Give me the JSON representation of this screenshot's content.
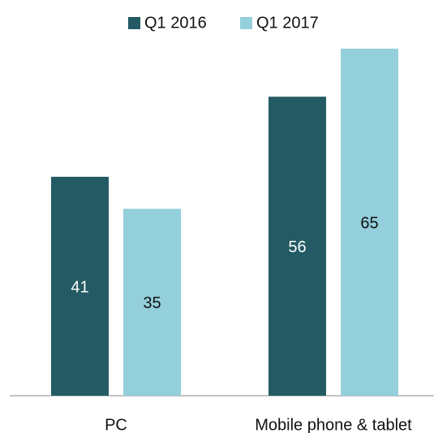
{
  "chart_data": {
    "type": "bar",
    "categories": [
      "PC",
      "Mobile phone & tablet"
    ],
    "series": [
      {
        "name": "Q1 2016",
        "color": "#235a63",
        "values": [
          41,
          56
        ]
      },
      {
        "name": "Q1 2017",
        "color": "#94cfdc",
        "values": [
          35,
          65
        ]
      }
    ],
    "legend": "top"
  }
}
